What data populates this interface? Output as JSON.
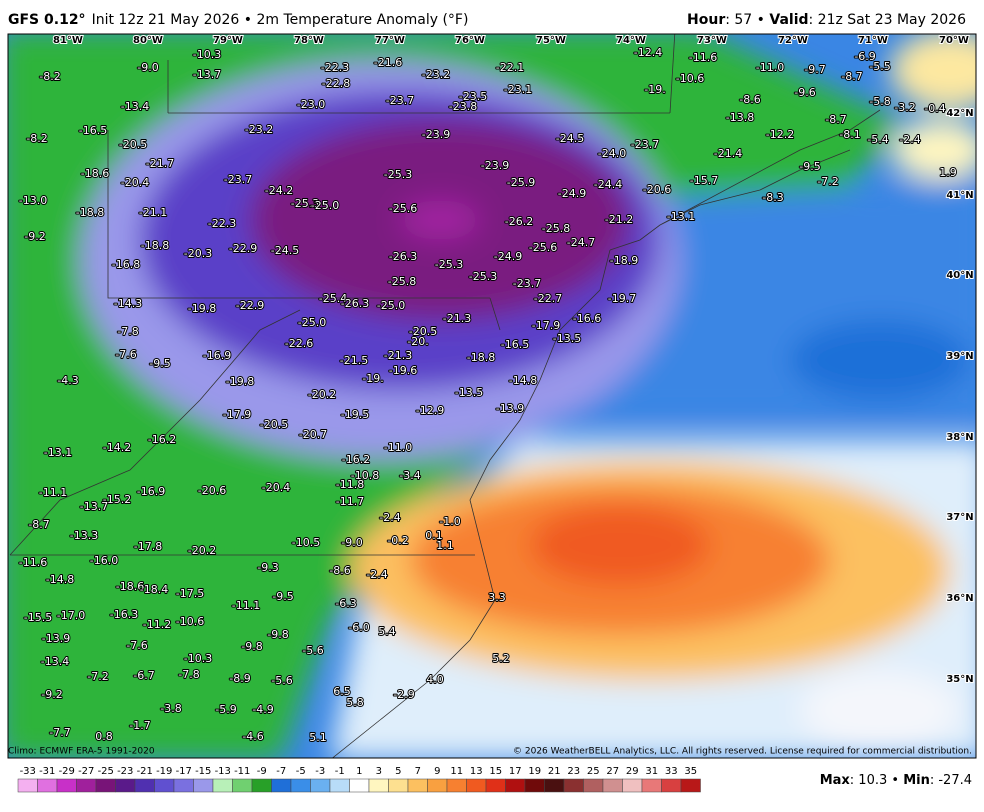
{
  "header": {
    "model": "GFS 0.12°",
    "description": "Init 12z 21 May 2026 • 2m Temperature Anomaly (°F)",
    "hour_label": "Hour",
    "hour": ": 57 • ",
    "valid_label": "Valid",
    "valid": ": 21z Sat 23 May 2026"
  },
  "map": {
    "longitudes": [
      "81°W",
      "80°W",
      "79°W",
      "78°W",
      "77°W",
      "76°W",
      "75°W",
      "74°W",
      "73°W",
      "72°W",
      "71°W",
      "70°W"
    ],
    "latitudes": [
      "42°N",
      "41°N",
      "40°N",
      "39°N",
      "38°N",
      "37°N",
      "36°N",
      "35°N"
    ],
    "values": [
      "-10.3",
      "-13.7",
      "-9.0",
      "-8.2",
      "-22.3",
      "-21.6",
      "-22.8",
      "-23.2",
      "-22.1",
      "-12.4",
      "-11.6",
      "-11.0",
      "-9.7",
      "-6.9",
      "-8.7",
      "-10.6",
      "-23.1",
      "-23.5",
      "-23.7",
      "-23.8",
      "-23.0",
      "-13.4",
      "-19.",
      "-8.6",
      "-9.6",
      "-5.8",
      "-8.2",
      "-16.5",
      "-20.5",
      "-23.2",
      "-23.9",
      "-24.5",
      "-13.8",
      "-12.2",
      "-8.7",
      "-23.7",
      "-24.0",
      "-21.4",
      "-21.7",
      "-18.6",
      "-25.3",
      "-25.9",
      "-23.9",
      "-24.4",
      "-24.9",
      "-20.6",
      "-15.7",
      "-23.7",
      "-20.4",
      "-13.0",
      "-24.2",
      "-25.3",
      "-25.0",
      "-25.6",
      "-18.8",
      "-21.1",
      "-22.3",
      "-26.2",
      "-25.8",
      "-21.2",
      "-13.1",
      "-8.3",
      "-9.2",
      "-18.8",
      "-20.3",
      "-22.9",
      "-24.5",
      "-26.3",
      "-25.3",
      "-24.9",
      "-25.6",
      "-24.7",
      "-18.9",
      "-16.8",
      "-25.8",
      "-25.3",
      "-23.7",
      "-14.3",
      "-19.8",
      "-22.9",
      "-25.4",
      "-26.3",
      "-25.0",
      "-25.0",
      "-21.3",
      "-22.7",
      "-19.7",
      "-16.6",
      "-17.9",
      "-7.8",
      "-20.5",
      "-20.",
      "-22.6",
      "-13.5",
      "-16.5",
      "-7.6",
      "-16.9",
      "-21.5",
      "-21.3",
      "-18.8",
      "-9.5",
      "-19.6",
      "-19.",
      "-4.3",
      "-19.8",
      "-14.8",
      "-20.2",
      "-13.5",
      "-19.5",
      "-17.9",
      "-12.9",
      "-13.9",
      "-20.5",
      "-20.7",
      "-16.2",
      "-14.2",
      "-13.1",
      "-11.0",
      "-16.2",
      "-10.8",
      "-3.4",
      "-11.8",
      "-11.1",
      "-16.9",
      "-20.6",
      "-20.4",
      "-15.2",
      "-13.7",
      "-11.7",
      "-8.7",
      "-2.4",
      "-1.0",
      "0.1",
      "-13.3",
      "-17.8",
      "-10.5",
      "-9.0",
      "-0.2",
      "1.1",
      "-20.2",
      "-16.0",
      "-11.6",
      "-9.3",
      "-8.6",
      "-2.4",
      "-14.8",
      "-18.6",
      "-18.4",
      "-17.5",
      "-9.5",
      "-11.1",
      "-15.5",
      "-17.0",
      "-16.3",
      "-6.3",
      "-11.2",
      "-10.6",
      "-6.0",
      "5.4",
      "-13.9",
      "-9.8",
      "-7.6",
      "-9.8",
      "-5.6",
      "-10.3",
      "-13.4",
      "-7.2",
      "-6.7",
      "-7.8",
      "-8.9",
      "-5.6",
      "6.5",
      "-2.9",
      "-9.2",
      "5.8",
      "-3.8",
      "-5.9",
      "-4.9",
      "-1.7",
      "-7.7",
      "0.8",
      "-4.6",
      "5.1",
      "-8.1",
      "-5.4",
      "-2.4",
      "-0.4",
      "-9.5",
      "-7.2",
      "-8.3",
      "-5.5",
      "-3.2",
      "1.9",
      "3.3",
      "5.2",
      "4.0"
    ]
  },
  "footer": {
    "climo": "Climo: ECMWF ERA-5 1991-2020",
    "copyright": "© 2026 WeatherBELL Analytics, LLC. All rights reserved. License required for commercial distribution.",
    "max_label": "Max",
    "max": ": 10.3 • ",
    "min_label": "Min",
    "min": ": -27.4"
  },
  "colorbar": {
    "labels": [
      -33,
      -31,
      -29,
      -27,
      -25,
      -23,
      -21,
      -19,
      -17,
      -15,
      -13,
      -11,
      -9,
      -7,
      -5,
      -3,
      -1,
      1,
      3,
      5,
      7,
      9,
      11,
      13,
      15,
      17,
      19,
      21,
      23,
      25,
      27,
      29,
      31,
      33,
      35
    ],
    "colors": [
      "#f4b0f0",
      "#e070e0",
      "#c830c8",
      "#a0209c",
      "#781478",
      "#5a1a8a",
      "#5030b0",
      "#6050d0",
      "#7a70e0",
      "#9a98ea",
      "#b8f0b8",
      "#70d070",
      "#28a028",
      "#1f6fd8",
      "#3a8ee8",
      "#6ab0f0",
      "#b8dcf8",
      "#ffffff",
      "#fff6c0",
      "#fde090",
      "#fcc060",
      "#f9a040",
      "#f78030",
      "#f05a20",
      "#e03018",
      "#b01010",
      "#700a0a",
      "#4a1010",
      "#8a3030",
      "#b06060",
      "#d09090",
      "#f0c0c0",
      "#e87878",
      "#d84040",
      "#b81818"
    ]
  }
}
